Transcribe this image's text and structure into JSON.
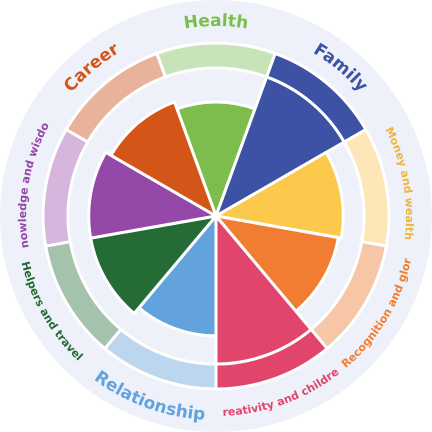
{
  "wheel": {
    "background_color": "#eef1f9",
    "segments": [
      {
        "key": "health",
        "label": "Health",
        "color": "#7dbd4e",
        "band_color": "#c8e3b7",
        "label_color": "#7dbd4e",
        "fill_fraction": 0.77,
        "label_size": "large"
      },
      {
        "key": "family",
        "label": "Family",
        "color": "#3d51a5",
        "band_color": "#3d51a5",
        "label_color": "#3d51a5",
        "fill_fraction": 1.0,
        "label_size": "large"
      },
      {
        "key": "money",
        "label": "Money and wealth",
        "color": "#fdc94c",
        "band_color": "#fde6b8",
        "label_color": "#f0b53a",
        "fill_fraction": 0.86,
        "label_size": "small"
      },
      {
        "key": "recognition",
        "label": "Recognition and glory",
        "color": "#f07d31",
        "band_color": "#f6c6a6",
        "label_color": "#f07d31",
        "fill_fraction": 0.84,
        "label_size": "small"
      },
      {
        "key": "creativity",
        "label": "Creativity and children",
        "color": "#e2456c",
        "band_color": "#e2456c",
        "label_color": "#e2456c",
        "fill_fraction": 1.0,
        "label_size": "small"
      },
      {
        "key": "relationship",
        "label": "Relationship",
        "color": "#63a3dd",
        "band_color": "#bcd6ef",
        "label_color": "#63a3dd",
        "fill_fraction": 0.81,
        "label_size": "large"
      },
      {
        "key": "helpers",
        "label": "Helpers and travel",
        "color": "#256b35",
        "band_color": "#a5c2ac",
        "label_color": "#256b35",
        "fill_fraction": 0.86,
        "label_size": "small"
      },
      {
        "key": "knowledge",
        "label": "Knowledge and wisdom",
        "color": "#9448a8",
        "band_color": "#d7b6de",
        "label_color": "#9448a8",
        "fill_fraction": 0.86,
        "label_size": "small"
      },
      {
        "key": "career",
        "label": "Career",
        "color": "#d45518",
        "band_color": "#e9b39b",
        "label_color": "#d45518",
        "fill_fraction": 0.82,
        "label_size": "large"
      }
    ]
  }
}
